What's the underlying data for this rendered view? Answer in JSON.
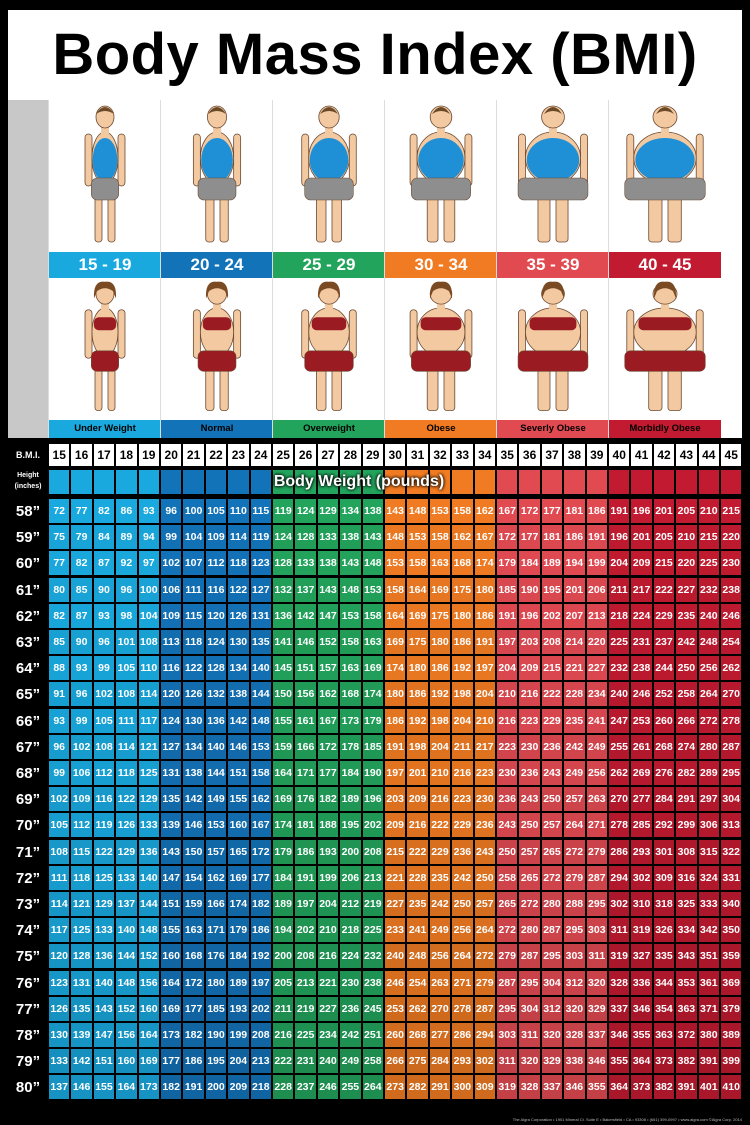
{
  "title": "Body Mass Index (BMI)",
  "colors": {
    "underweight": "#19a9df",
    "normal": "#1373b9",
    "overweight": "#22a45c",
    "obese": "#f07b22",
    "severely_obese": "#e24a52",
    "morbidly_obese": "#c21a30"
  },
  "categories": [
    {
      "range": "15 - 19",
      "label": "Under Weight",
      "color": "#19a9df",
      "size": 0
    },
    {
      "range": "20 - 24",
      "label": "Normal",
      "color": "#1373b9",
      "size": 1
    },
    {
      "range": "25 - 29",
      "label": "Overweight",
      "color": "#22a45c",
      "size": 2
    },
    {
      "range": "30 - 34",
      "label": "Obese",
      "color": "#f07b22",
      "size": 3
    },
    {
      "range": "35 - 39",
      "label": "Severly Obese",
      "color": "#e24a52",
      "size": 4
    },
    {
      "range": "40 - 45",
      "label": "Morbidly Obese",
      "color": "#c21a30",
      "size": 5
    }
  ],
  "table": {
    "bmi_header": "B.M.I.",
    "height_header": "Height (inches)",
    "weight_banner": "Body Weight (pounds)"
  },
  "footer": "The Algra Corporation • 1901 Mineral Ct. Suite E • Bakersfield • CA • 93308 • (661) 399-0997 • www.algra.com ©Algra Corp. 2014",
  "chart_data": {
    "type": "table",
    "title": "Body Mass Index (BMI)",
    "columns_bmi": [
      15,
      16,
      17,
      18,
      19,
      20,
      21,
      22,
      23,
      24,
      25,
      26,
      27,
      28,
      29,
      30,
      31,
      32,
      33,
      34,
      35,
      36,
      37,
      38,
      39,
      40,
      41,
      42,
      43,
      44,
      45
    ],
    "rows": [
      {
        "height": "58”",
        "weights": [
          72,
          77,
          82,
          86,
          93,
          96,
          100,
          105,
          110,
          115,
          119,
          124,
          129,
          134,
          138,
          143,
          148,
          153,
          158,
          162,
          167,
          172,
          177,
          181,
          186,
          191,
          196,
          201,
          205,
          210,
          215
        ]
      },
      {
        "height": "59”",
        "weights": [
          75,
          79,
          84,
          89,
          94,
          99,
          104,
          109,
          114,
          119,
          124,
          128,
          133,
          138,
          143,
          148,
          153,
          158,
          162,
          167,
          172,
          177,
          181,
          186,
          191,
          196,
          201,
          205,
          210,
          215,
          220
        ]
      },
      {
        "height": "60”",
        "weights": [
          77,
          82,
          87,
          92,
          97,
          102,
          107,
          112,
          118,
          123,
          128,
          133,
          138,
          143,
          148,
          153,
          158,
          163,
          168,
          174,
          179,
          184,
          189,
          194,
          199,
          204,
          209,
          215,
          220,
          225,
          230
        ]
      },
      {
        "height": "61”",
        "weights": [
          80,
          85,
          90,
          96,
          100,
          106,
          111,
          116,
          122,
          127,
          132,
          137,
          143,
          148,
          153,
          158,
          164,
          169,
          175,
          180,
          185,
          190,
          195,
          201,
          206,
          211,
          217,
          222,
          227,
          232,
          238
        ]
      },
      {
        "height": "62”",
        "weights": [
          82,
          87,
          93,
          98,
          104,
          109,
          115,
          120,
          126,
          131,
          136,
          142,
          147,
          153,
          158,
          164,
          169,
          175,
          180,
          186,
          191,
          196,
          202,
          207,
          213,
          218,
          224,
          229,
          235,
          240,
          246
        ]
      },
      {
        "height": "63”",
        "weights": [
          85,
          90,
          96,
          101,
          108,
          113,
          118,
          124,
          130,
          135,
          141,
          146,
          152,
          158,
          163,
          169,
          175,
          180,
          186,
          191,
          197,
          203,
          208,
          214,
          220,
          225,
          231,
          237,
          242,
          248,
          254
        ]
      },
      {
        "height": "64”",
        "weights": [
          88,
          93,
          99,
          105,
          110,
          116,
          122,
          128,
          134,
          140,
          145,
          151,
          157,
          163,
          169,
          174,
          180,
          186,
          192,
          197,
          204,
          209,
          215,
          221,
          227,
          232,
          238,
          244,
          250,
          256,
          262
        ]
      },
      {
        "height": "65”",
        "weights": [
          91,
          96,
          102,
          108,
          114,
          120,
          126,
          132,
          138,
          144,
          150,
          156,
          162,
          168,
          174,
          180,
          186,
          192,
          198,
          204,
          210,
          216,
          222,
          228,
          234,
          240,
          246,
          252,
          258,
          264,
          270
        ]
      },
      {
        "height": "66”",
        "weights": [
          93,
          99,
          105,
          111,
          117,
          124,
          130,
          136,
          142,
          148,
          155,
          161,
          167,
          173,
          179,
          186,
          192,
          198,
          204,
          210,
          216,
          223,
          229,
          235,
          241,
          247,
          253,
          260,
          266,
          272,
          278
        ]
      },
      {
        "height": "67”",
        "weights": [
          96,
          102,
          108,
          114,
          121,
          127,
          134,
          140,
          146,
          153,
          159,
          166,
          172,
          178,
          185,
          191,
          198,
          204,
          211,
          217,
          223,
          230,
          236,
          242,
          249,
          255,
          261,
          268,
          274,
          280,
          287
        ]
      },
      {
        "height": "68”",
        "weights": [
          99,
          106,
          112,
          118,
          125,
          131,
          138,
          144,
          151,
          158,
          164,
          171,
          177,
          184,
          190,
          197,
          201,
          210,
          216,
          223,
          230,
          236,
          243,
          249,
          256,
          262,
          269,
          276,
          282,
          289,
          295
        ]
      },
      {
        "height": "69”",
        "weights": [
          102,
          109,
          116,
          122,
          129,
          135,
          142,
          149,
          155,
          162,
          169,
          176,
          182,
          189,
          196,
          203,
          209,
          216,
          223,
          230,
          236,
          243,
          250,
          257,
          263,
          270,
          277,
          284,
          291,
          297,
          304
        ]
      },
      {
        "height": "70”",
        "weights": [
          105,
          112,
          119,
          126,
          133,
          139,
          146,
          153,
          160,
          167,
          174,
          181,
          188,
          195,
          202,
          209,
          216,
          222,
          229,
          236,
          243,
          250,
          257,
          264,
          271,
          278,
          285,
          292,
          299,
          306,
          313
        ]
      },
      {
        "height": "71”",
        "weights": [
          108,
          115,
          122,
          129,
          136,
          143,
          150,
          157,
          165,
          172,
          179,
          186,
          193,
          200,
          208,
          215,
          222,
          229,
          236,
          243,
          250,
          257,
          265,
          272,
          279,
          286,
          293,
          301,
          308,
          315,
          322
        ]
      },
      {
        "height": "72”",
        "weights": [
          111,
          118,
          125,
          133,
          140,
          147,
          154,
          162,
          169,
          177,
          184,
          191,
          199,
          206,
          213,
          221,
          228,
          235,
          242,
          250,
          258,
          265,
          272,
          279,
          287,
          294,
          302,
          309,
          316,
          324,
          331
        ]
      },
      {
        "height": "73”",
        "weights": [
          114,
          121,
          129,
          137,
          144,
          151,
          159,
          166,
          174,
          182,
          189,
          197,
          204,
          212,
          219,
          227,
          235,
          242,
          250,
          257,
          265,
          272,
          280,
          288,
          295,
          302,
          310,
          318,
          325,
          333,
          340
        ]
      },
      {
        "height": "74”",
        "weights": [
          117,
          125,
          133,
          140,
          148,
          155,
          163,
          171,
          179,
          186,
          194,
          202,
          210,
          218,
          225,
          233,
          241,
          249,
          256,
          264,
          272,
          280,
          287,
          295,
          303,
          311,
          319,
          326,
          334,
          342,
          350
        ]
      },
      {
        "height": "75”",
        "weights": [
          120,
          128,
          136,
          144,
          152,
          160,
          168,
          176,
          184,
          192,
          200,
          208,
          216,
          224,
          232,
          240,
          248,
          256,
          264,
          272,
          279,
          287,
          295,
          303,
          311,
          319,
          327,
          335,
          343,
          351,
          359
        ]
      },
      {
        "height": "76”",
        "weights": [
          123,
          131,
          140,
          148,
          156,
          164,
          172,
          180,
          189,
          197,
          205,
          213,
          221,
          230,
          238,
          246,
          254,
          263,
          271,
          279,
          287,
          295,
          304,
          312,
          320,
          328,
          336,
          344,
          353,
          361,
          369
        ]
      },
      {
        "height": "77”",
        "weights": [
          126,
          135,
          143,
          152,
          160,
          169,
          177,
          185,
          193,
          202,
          211,
          219,
          227,
          236,
          245,
          253,
          262,
          270,
          278,
          287,
          295,
          304,
          312,
          320,
          329,
          337,
          346,
          354,
          363,
          371,
          379
        ]
      },
      {
        "height": "78”",
        "weights": [
          130,
          139,
          147,
          156,
          164,
          173,
          182,
          190,
          199,
          208,
          216,
          225,
          234,
          242,
          251,
          260,
          268,
          277,
          286,
          294,
          303,
          311,
          320,
          328,
          337,
          346,
          355,
          363,
          372,
          380,
          389
        ]
      },
      {
        "height": "79”",
        "weights": [
          133,
          142,
          151,
          160,
          169,
          177,
          186,
          195,
          204,
          213,
          222,
          231,
          240,
          249,
          258,
          266,
          275,
          284,
          293,
          302,
          311,
          320,
          329,
          338,
          346,
          355,
          364,
          373,
          382,
          391,
          399
        ]
      },
      {
        "height": "80”",
        "weights": [
          137,
          146,
          155,
          164,
          173,
          182,
          191,
          200,
          209,
          218,
          228,
          237,
          246,
          255,
          264,
          273,
          282,
          291,
          300,
          309,
          319,
          328,
          337,
          346,
          355,
          364,
          373,
          382,
          391,
          401,
          410
        ]
      }
    ]
  }
}
